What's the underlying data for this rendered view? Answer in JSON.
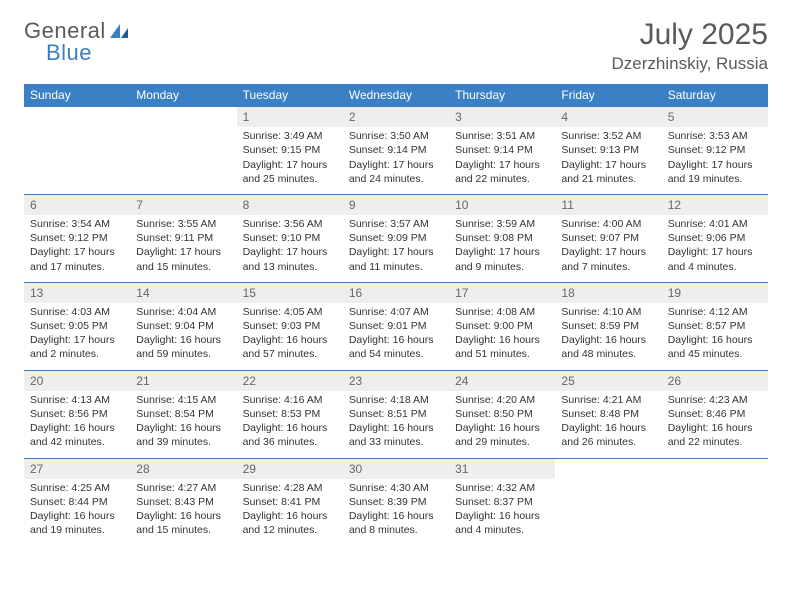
{
  "brand": {
    "name1": "General",
    "name2": "Blue"
  },
  "title": "July 2025",
  "location": "Dzerzhinskiy, Russia",
  "colors": {
    "accent": "#3b7fc4",
    "text": "#5a5a5a",
    "dayhead_bg": "#eeeeee"
  },
  "day_headers": [
    "Sunday",
    "Monday",
    "Tuesday",
    "Wednesday",
    "Thursday",
    "Friday",
    "Saturday"
  ],
  "weeks": [
    [
      null,
      null,
      {
        "n": "1",
        "sr": "Sunrise: 3:49 AM",
        "ss": "Sunset: 9:15 PM",
        "d1": "Daylight: 17 hours",
        "d2": "and 25 minutes."
      },
      {
        "n": "2",
        "sr": "Sunrise: 3:50 AM",
        "ss": "Sunset: 9:14 PM",
        "d1": "Daylight: 17 hours",
        "d2": "and 24 minutes."
      },
      {
        "n": "3",
        "sr": "Sunrise: 3:51 AM",
        "ss": "Sunset: 9:14 PM",
        "d1": "Daylight: 17 hours",
        "d2": "and 22 minutes."
      },
      {
        "n": "4",
        "sr": "Sunrise: 3:52 AM",
        "ss": "Sunset: 9:13 PM",
        "d1": "Daylight: 17 hours",
        "d2": "and 21 minutes."
      },
      {
        "n": "5",
        "sr": "Sunrise: 3:53 AM",
        "ss": "Sunset: 9:12 PM",
        "d1": "Daylight: 17 hours",
        "d2": "and 19 minutes."
      }
    ],
    [
      {
        "n": "6",
        "sr": "Sunrise: 3:54 AM",
        "ss": "Sunset: 9:12 PM",
        "d1": "Daylight: 17 hours",
        "d2": "and 17 minutes."
      },
      {
        "n": "7",
        "sr": "Sunrise: 3:55 AM",
        "ss": "Sunset: 9:11 PM",
        "d1": "Daylight: 17 hours",
        "d2": "and 15 minutes."
      },
      {
        "n": "8",
        "sr": "Sunrise: 3:56 AM",
        "ss": "Sunset: 9:10 PM",
        "d1": "Daylight: 17 hours",
        "d2": "and 13 minutes."
      },
      {
        "n": "9",
        "sr": "Sunrise: 3:57 AM",
        "ss": "Sunset: 9:09 PM",
        "d1": "Daylight: 17 hours",
        "d2": "and 11 minutes."
      },
      {
        "n": "10",
        "sr": "Sunrise: 3:59 AM",
        "ss": "Sunset: 9:08 PM",
        "d1": "Daylight: 17 hours",
        "d2": "and 9 minutes."
      },
      {
        "n": "11",
        "sr": "Sunrise: 4:00 AM",
        "ss": "Sunset: 9:07 PM",
        "d1": "Daylight: 17 hours",
        "d2": "and 7 minutes."
      },
      {
        "n": "12",
        "sr": "Sunrise: 4:01 AM",
        "ss": "Sunset: 9:06 PM",
        "d1": "Daylight: 17 hours",
        "d2": "and 4 minutes."
      }
    ],
    [
      {
        "n": "13",
        "sr": "Sunrise: 4:03 AM",
        "ss": "Sunset: 9:05 PM",
        "d1": "Daylight: 17 hours",
        "d2": "and 2 minutes."
      },
      {
        "n": "14",
        "sr": "Sunrise: 4:04 AM",
        "ss": "Sunset: 9:04 PM",
        "d1": "Daylight: 16 hours",
        "d2": "and 59 minutes."
      },
      {
        "n": "15",
        "sr": "Sunrise: 4:05 AM",
        "ss": "Sunset: 9:03 PM",
        "d1": "Daylight: 16 hours",
        "d2": "and 57 minutes."
      },
      {
        "n": "16",
        "sr": "Sunrise: 4:07 AM",
        "ss": "Sunset: 9:01 PM",
        "d1": "Daylight: 16 hours",
        "d2": "and 54 minutes."
      },
      {
        "n": "17",
        "sr": "Sunrise: 4:08 AM",
        "ss": "Sunset: 9:00 PM",
        "d1": "Daylight: 16 hours",
        "d2": "and 51 minutes."
      },
      {
        "n": "18",
        "sr": "Sunrise: 4:10 AM",
        "ss": "Sunset: 8:59 PM",
        "d1": "Daylight: 16 hours",
        "d2": "and 48 minutes."
      },
      {
        "n": "19",
        "sr": "Sunrise: 4:12 AM",
        "ss": "Sunset: 8:57 PM",
        "d1": "Daylight: 16 hours",
        "d2": "and 45 minutes."
      }
    ],
    [
      {
        "n": "20",
        "sr": "Sunrise: 4:13 AM",
        "ss": "Sunset: 8:56 PM",
        "d1": "Daylight: 16 hours",
        "d2": "and 42 minutes."
      },
      {
        "n": "21",
        "sr": "Sunrise: 4:15 AM",
        "ss": "Sunset: 8:54 PM",
        "d1": "Daylight: 16 hours",
        "d2": "and 39 minutes."
      },
      {
        "n": "22",
        "sr": "Sunrise: 4:16 AM",
        "ss": "Sunset: 8:53 PM",
        "d1": "Daylight: 16 hours",
        "d2": "and 36 minutes."
      },
      {
        "n": "23",
        "sr": "Sunrise: 4:18 AM",
        "ss": "Sunset: 8:51 PM",
        "d1": "Daylight: 16 hours",
        "d2": "and 33 minutes."
      },
      {
        "n": "24",
        "sr": "Sunrise: 4:20 AM",
        "ss": "Sunset: 8:50 PM",
        "d1": "Daylight: 16 hours",
        "d2": "and 29 minutes."
      },
      {
        "n": "25",
        "sr": "Sunrise: 4:21 AM",
        "ss": "Sunset: 8:48 PM",
        "d1": "Daylight: 16 hours",
        "d2": "and 26 minutes."
      },
      {
        "n": "26",
        "sr": "Sunrise: 4:23 AM",
        "ss": "Sunset: 8:46 PM",
        "d1": "Daylight: 16 hours",
        "d2": "and 22 minutes."
      }
    ],
    [
      {
        "n": "27",
        "sr": "Sunrise: 4:25 AM",
        "ss": "Sunset: 8:44 PM",
        "d1": "Daylight: 16 hours",
        "d2": "and 19 minutes."
      },
      {
        "n": "28",
        "sr": "Sunrise: 4:27 AM",
        "ss": "Sunset: 8:43 PM",
        "d1": "Daylight: 16 hours",
        "d2": "and 15 minutes."
      },
      {
        "n": "29",
        "sr": "Sunrise: 4:28 AM",
        "ss": "Sunset: 8:41 PM",
        "d1": "Daylight: 16 hours",
        "d2": "and 12 minutes."
      },
      {
        "n": "30",
        "sr": "Sunrise: 4:30 AM",
        "ss": "Sunset: 8:39 PM",
        "d1": "Daylight: 16 hours",
        "d2": "and 8 minutes."
      },
      {
        "n": "31",
        "sr": "Sunrise: 4:32 AM",
        "ss": "Sunset: 8:37 PM",
        "d1": "Daylight: 16 hours",
        "d2": "and 4 minutes."
      },
      null,
      null
    ]
  ]
}
